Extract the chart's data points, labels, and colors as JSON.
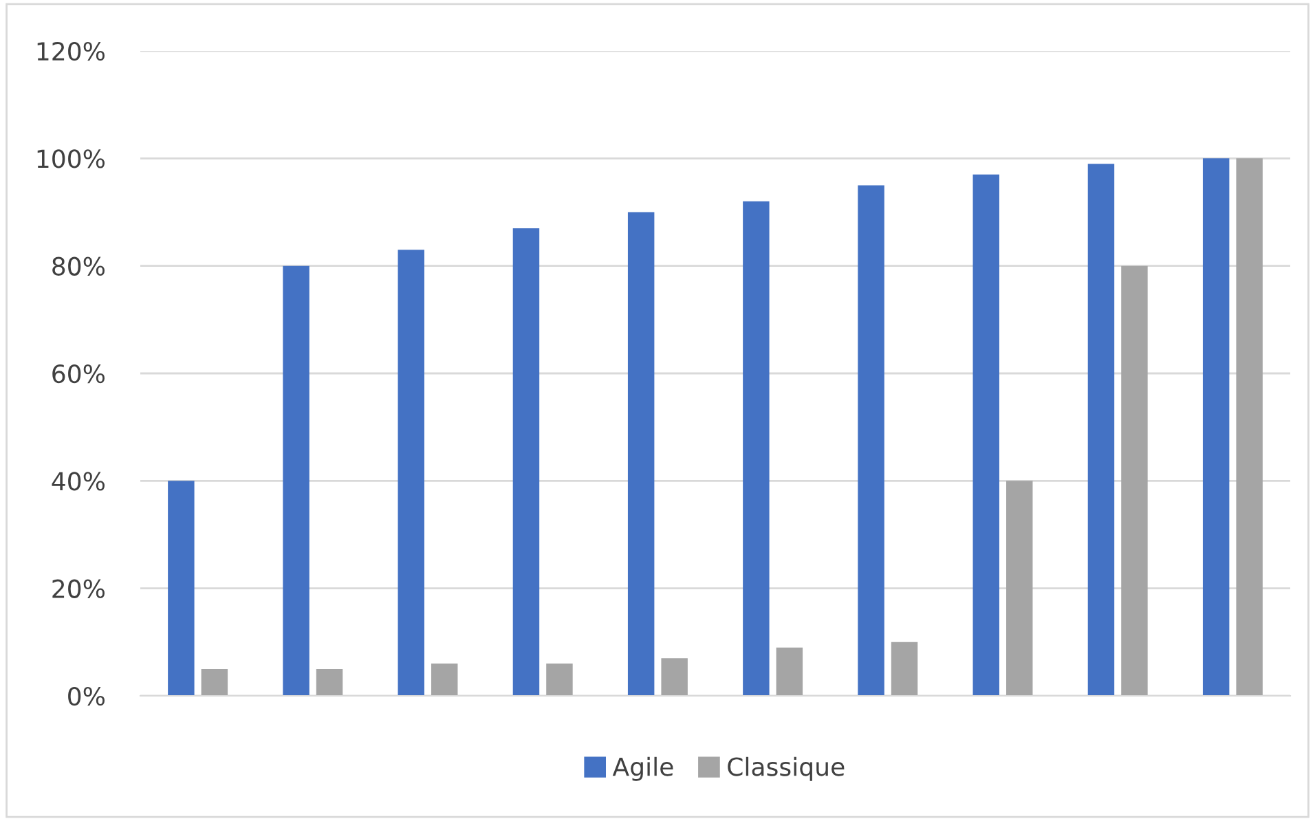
{
  "chart_data": {
    "type": "bar",
    "categories": [
      null,
      null,
      null,
      null,
      null,
      null,
      null,
      null,
      null,
      null
    ],
    "series": [
      {
        "name": "Agile",
        "color": "#4472c4",
        "values": [
          40,
          80,
          83,
          87,
          90,
          92,
          95,
          97,
          99,
          100
        ]
      },
      {
        "name": "Classique",
        "color": "#a5a5a5",
        "values": [
          5,
          5,
          6,
          6,
          7,
          9,
          10,
          40,
          80,
          100
        ]
      }
    ],
    "ylim": [
      0,
      120
    ],
    "yticks": [
      {
        "value": 0,
        "label": "0%"
      },
      {
        "value": 20,
        "label": "20%"
      },
      {
        "value": 40,
        "label": "40%"
      },
      {
        "value": 60,
        "label": "60%"
      },
      {
        "value": 80,
        "label": "80%"
      },
      {
        "value": 100,
        "label": "100%"
      },
      {
        "value": 120,
        "label": "120%"
      }
    ],
    "grid": "y",
    "legend": "bottom"
  }
}
